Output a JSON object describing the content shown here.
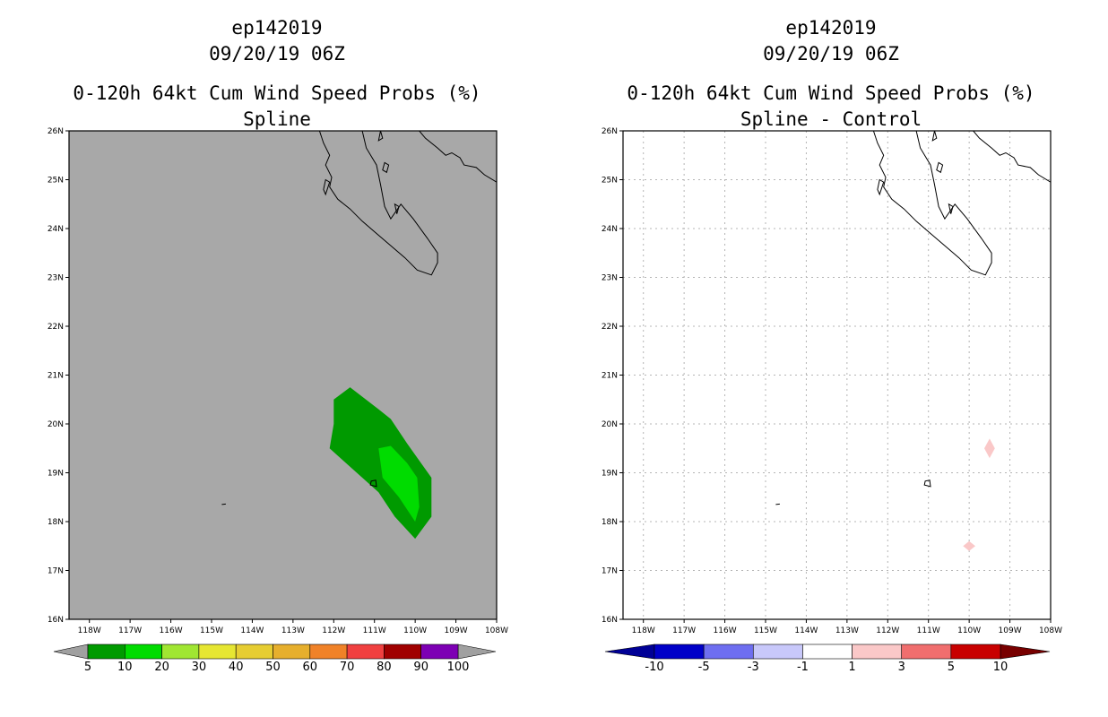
{
  "left": {
    "title": [
      "ep142019",
      "09/20/19 06Z",
      "0-120h 64kt Cum Wind Speed Probs (%)",
      "Spline"
    ],
    "colorbar": {
      "labels": [
        "5",
        "10",
        "20",
        "30",
        "40",
        "50",
        "60",
        "70",
        "80",
        "90",
        "100"
      ],
      "colors": [
        "#009a00",
        "#00dc00",
        "#a0e632",
        "#e6e632",
        "#e6cd32",
        "#e6af2d",
        "#f08228",
        "#f04040",
        "#a00000",
        "#7d00b4"
      ],
      "under_color": "#a0a0a0",
      "over_color": "#a0a0a0"
    }
  },
  "right": {
    "title": [
      "ep142019",
      "09/20/19 06Z",
      "0-120h 64kt Cum Wind Speed Probs (%)",
      "Spline - Control"
    ],
    "colorbar": {
      "labels": [
        "-10",
        "-5",
        "-3",
        "-1",
        "1",
        "3",
        "5",
        "10"
      ],
      "colors": [
        "#0000c8",
        "#6e6ef0",
        "#c8c8fa",
        "#ffffff",
        "#fac8c8",
        "#f06e6e",
        "#c80000"
      ],
      "under_color": "#000096",
      "over_color": "#780000"
    }
  },
  "chart_data": [
    {
      "type": "heatmap",
      "title": "0-120h 64kt Cum Wind Speed Probs (%) Spline",
      "x_ticks": [
        "118W",
        "117W",
        "116W",
        "115W",
        "114W",
        "113W",
        "112W",
        "111W",
        "110W",
        "109W",
        "108W"
      ],
      "y_ticks": [
        "16N",
        "17N",
        "18N",
        "19N",
        "20N",
        "21N",
        "22N",
        "23N",
        "24N",
        "25N",
        "26N"
      ],
      "xlim": [
        -118.5,
        -108
      ],
      "ylim": [
        16,
        26
      ],
      "background_color": "#a8a8a8",
      "contours": [
        {
          "level": "5-10",
          "color": "#009a00",
          "polygon": [
            [
              -112.0,
              20.5
            ],
            [
              -111.6,
              20.75
            ],
            [
              -110.9,
              20.3
            ],
            [
              -110.6,
              20.1
            ],
            [
              -110.2,
              19.6
            ],
            [
              -109.6,
              18.9
            ],
            [
              -109.6,
              18.1
            ],
            [
              -110.0,
              17.65
            ],
            [
              -110.5,
              18.1
            ],
            [
              -110.9,
              18.6
            ],
            [
              -112.1,
              19.5
            ],
            [
              -112.0,
              20.0
            ]
          ]
        },
        {
          "level": "10-20",
          "color": "#00dc00",
          "polygon": [
            [
              -110.9,
              19.5
            ],
            [
              -110.6,
              19.55
            ],
            [
              -110.2,
              19.2
            ],
            [
              -109.95,
              18.9
            ],
            [
              -109.9,
              18.3
            ],
            [
              -110.0,
              18.0
            ],
            [
              -110.4,
              18.5
            ],
            [
              -110.8,
              18.9
            ]
          ]
        }
      ],
      "grid": false
    },
    {
      "type": "heatmap",
      "title": "0-120h 64kt Cum Wind Speed Probs (%) Spline - Control",
      "x_ticks": [
        "118W",
        "117W",
        "116W",
        "115W",
        "114W",
        "113W",
        "112W",
        "111W",
        "110W",
        "109W",
        "108W"
      ],
      "y_ticks": [
        "16N",
        "17N",
        "18N",
        "19N",
        "20N",
        "21N",
        "22N",
        "23N",
        "24N",
        "25N",
        "26N"
      ],
      "xlim": [
        -118.5,
        -108
      ],
      "ylim": [
        16,
        26
      ],
      "background_color": "#ffffff",
      "contours": [
        {
          "level": "1-3",
          "color": "#fac8c8",
          "polygon": [
            [
              -109.5,
              19.7
            ],
            [
              -109.37,
              19.5
            ],
            [
              -109.5,
              19.3
            ],
            [
              -109.63,
              19.5
            ]
          ]
        },
        {
          "level": "1-3",
          "color": "#fac8c8",
          "polygon": [
            [
              -110.0,
              17.6
            ],
            [
              -109.85,
              17.5
            ],
            [
              -110.0,
              17.4
            ],
            [
              -110.15,
              17.5
            ]
          ]
        }
      ],
      "grid": true
    }
  ]
}
